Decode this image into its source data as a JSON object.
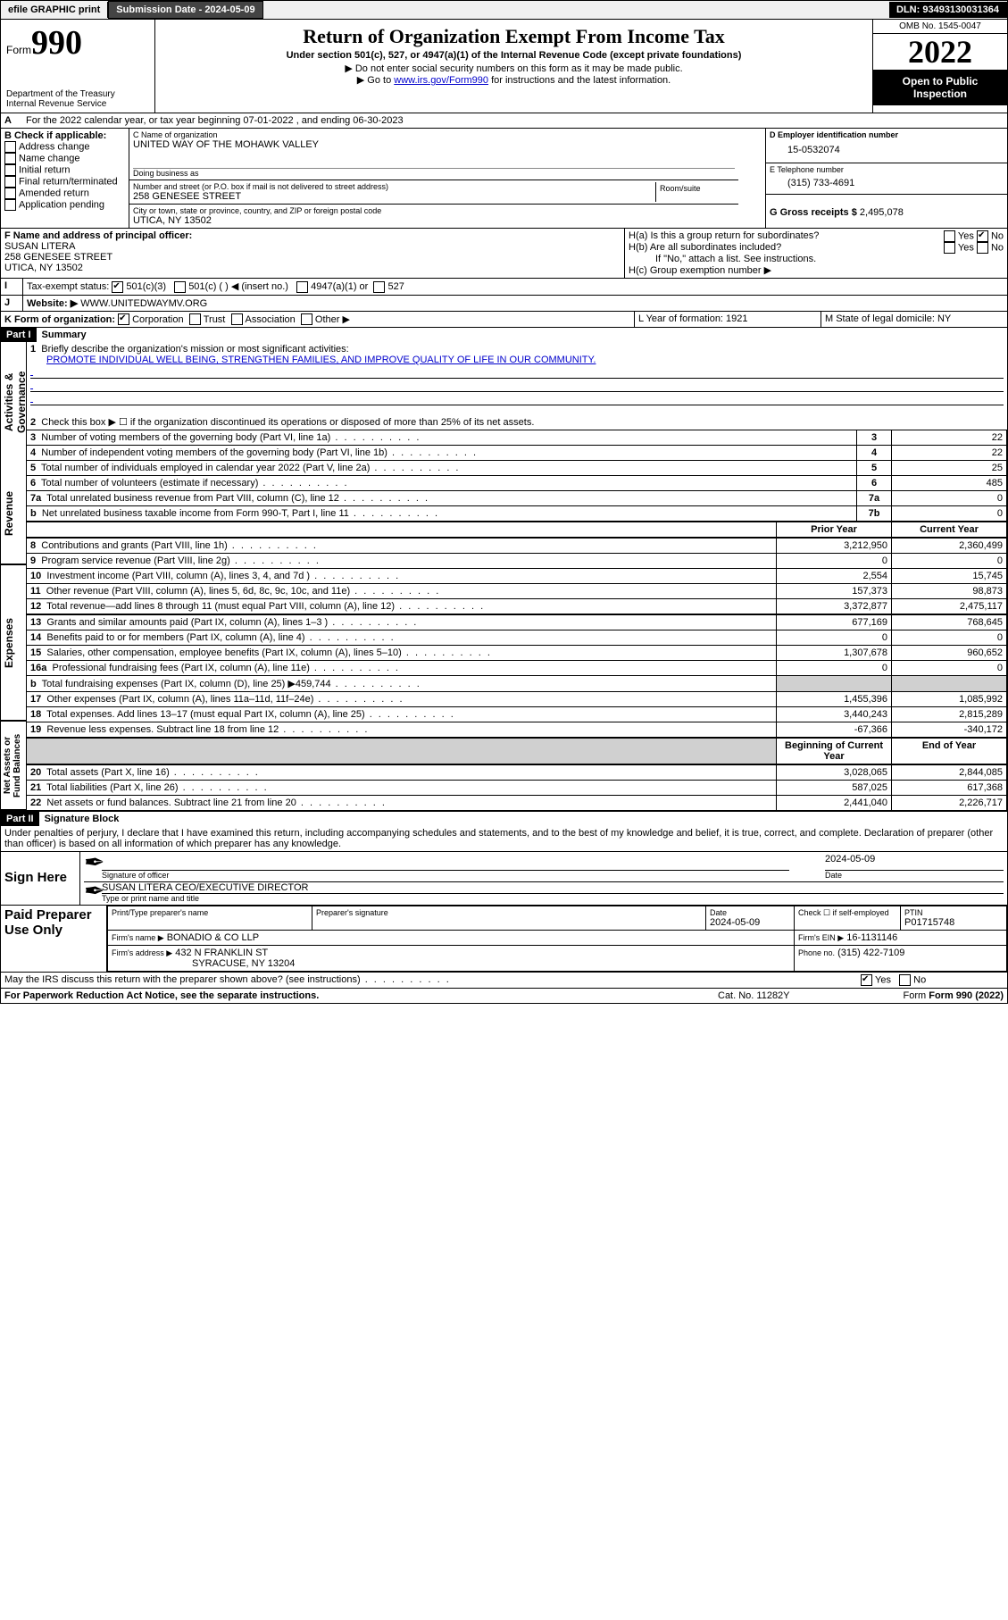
{
  "topbar": {
    "efile": "efile GRAPHIC print",
    "submission_label": "Submission Date - 2024-05-09",
    "dln": "DLN: 93493130031364"
  },
  "header": {
    "form_prefix": "Form",
    "form_number": "990",
    "dept": "Department of the Treasury",
    "irs": "Internal Revenue Service",
    "title": "Return of Organization Exempt From Income Tax",
    "sub1": "Under section 501(c), 527, or 4947(a)(1) of the Internal Revenue Code (except private foundations)",
    "sub2": "▶ Do not enter social security numbers on this form as it may be made public.",
    "sub3_pre": "▶ Go to ",
    "sub3_link": "www.irs.gov/Form990",
    "sub3_post": " for instructions and the latest information.",
    "omb": "OMB No. 1545-0047",
    "year": "2022",
    "open_public": "Open to Public Inspection"
  },
  "sectionA": {
    "period": "For the 2022 calendar year, or tax year beginning 07-01-2022    , and ending 06-30-2023",
    "B_label": "B Check if applicable:",
    "b_items": [
      "Address change",
      "Name change",
      "Initial return",
      "Final return/terminated",
      "Amended return",
      "Application pending"
    ],
    "C_label": "C Name of organization",
    "org_name": "UNITED WAY OF THE MOHAWK VALLEY",
    "dba_label": "Doing business as",
    "dba": "",
    "addr_label": "Number and street (or P.O. box if mail is not delivered to street address)",
    "room_label": "Room/suite",
    "addr": "258 GENESEE STREET",
    "city_label": "City or town, state or province, country, and ZIP or foreign postal code",
    "city": "UTICA, NY  13502",
    "D_label": "D Employer identification number",
    "ein": "15-0532074",
    "E_label": "E Telephone number",
    "phone": "(315) 733-4691",
    "G_label": "G Gross receipts $",
    "gross": "2,495,078",
    "F_label": "F  Name and address of principal officer:",
    "officer_name": "SUSAN LITERA",
    "officer_addr1": "258 GENESEE STREET",
    "officer_addr2": "UTICA, NY  13502",
    "Ha_label": "H(a)  Is this a group return for subordinates?",
    "Hb_label": "H(b)  Are all subordinates included?",
    "Hb_note": "If \"No,\" attach a list. See instructions.",
    "Hc_label": "H(c)  Group exemption number ▶",
    "I_label": "Tax-exempt status:",
    "I_501c3": "501(c)(3)",
    "I_501c": "501(c) (  ) ◀ (insert no.)",
    "I_4947": "4947(a)(1) or",
    "I_527": "527",
    "J_label": "Website: ▶",
    "website": "WWW.UNITEDWAYMV.ORG",
    "K_label": "K Form of organization:",
    "K_corp": "Corporation",
    "K_trust": "Trust",
    "K_assoc": "Association",
    "K_other": "Other ▶",
    "L_label": "L Year of formation: 1921",
    "M_label": "M State of legal domicile: NY"
  },
  "part1": {
    "header": "Part I",
    "title": "Summary",
    "side1": "Activities & Governance",
    "side2": "Revenue",
    "side3": "Expenses",
    "side4": "Net Assets or Fund Balances",
    "q1": "Briefly describe the organization's mission or most significant activities:",
    "q1_ans": "PROMOTE INDIVIDUAL WELL BEING, STRENGTHEN FAMILIES, AND IMPROVE QUALITY OF LIFE IN OUR COMMUNITY.",
    "q2": "Check this box ▶ ☐  if the organization discontinued its operations or disposed of more than 25% of its net assets.",
    "rows_gov": [
      {
        "n": "3",
        "t": "Number of voting members of the governing body (Part VI, line 1a)",
        "box": "3",
        "v": "22"
      },
      {
        "n": "4",
        "t": "Number of independent voting members of the governing body (Part VI, line 1b)",
        "box": "4",
        "v": "22"
      },
      {
        "n": "5",
        "t": "Total number of individuals employed in calendar year 2022 (Part V, line 2a)",
        "box": "5",
        "v": "25"
      },
      {
        "n": "6",
        "t": "Total number of volunteers (estimate if necessary)",
        "box": "6",
        "v": "485"
      },
      {
        "n": "7a",
        "t": "Total unrelated business revenue from Part VIII, column (C), line 12",
        "box": "7a",
        "v": "0"
      },
      {
        "n": "b",
        "t": "Net unrelated business taxable income from Form 990-T, Part I, line 11",
        "box": "7b",
        "v": "0"
      }
    ],
    "col_prior": "Prior Year",
    "col_current": "Current Year",
    "rows_rev": [
      {
        "n": "8",
        "t": "Contributions and grants (Part VIII, line 1h)",
        "p": "3,212,950",
        "c": "2,360,499"
      },
      {
        "n": "9",
        "t": "Program service revenue (Part VIII, line 2g)",
        "p": "0",
        "c": "0"
      },
      {
        "n": "10",
        "t": "Investment income (Part VIII, column (A), lines 3, 4, and 7d )",
        "p": "2,554",
        "c": "15,745"
      },
      {
        "n": "11",
        "t": "Other revenue (Part VIII, column (A), lines 5, 6d, 8c, 9c, 10c, and 11e)",
        "p": "157,373",
        "c": "98,873"
      },
      {
        "n": "12",
        "t": "Total revenue—add lines 8 through 11 (must equal Part VIII, column (A), line 12)",
        "p": "3,372,877",
        "c": "2,475,117"
      }
    ],
    "rows_exp": [
      {
        "n": "13",
        "t": "Grants and similar amounts paid (Part IX, column (A), lines 1–3 )",
        "p": "677,169",
        "c": "768,645"
      },
      {
        "n": "14",
        "t": "Benefits paid to or for members (Part IX, column (A), line 4)",
        "p": "0",
        "c": "0"
      },
      {
        "n": "15",
        "t": "Salaries, other compensation, employee benefits (Part IX, column (A), lines 5–10)",
        "p": "1,307,678",
        "c": "960,652"
      },
      {
        "n": "16a",
        "t": "Professional fundraising fees (Part IX, column (A), line 11e)",
        "p": "0",
        "c": "0"
      },
      {
        "n": "b",
        "t": "Total fundraising expenses (Part IX, column (D), line 25) ▶459,744",
        "p": "",
        "c": "",
        "shade": true
      },
      {
        "n": "17",
        "t": "Other expenses (Part IX, column (A), lines 11a–11d, 11f–24e)",
        "p": "1,455,396",
        "c": "1,085,992"
      },
      {
        "n": "18",
        "t": "Total expenses. Add lines 13–17 (must equal Part IX, column (A), line 25)",
        "p": "3,440,243",
        "c": "2,815,289"
      },
      {
        "n": "19",
        "t": "Revenue less expenses. Subtract line 18 from line 12",
        "p": "-67,366",
        "c": "-340,172"
      }
    ],
    "col_beg": "Beginning of Current Year",
    "col_end": "End of Year",
    "rows_net": [
      {
        "n": "20",
        "t": "Total assets (Part X, line 16)",
        "p": "3,028,065",
        "c": "2,844,085"
      },
      {
        "n": "21",
        "t": "Total liabilities (Part X, line 26)",
        "p": "587,025",
        "c": "617,368"
      },
      {
        "n": "22",
        "t": "Net assets or fund balances. Subtract line 21 from line 20",
        "p": "2,441,040",
        "c": "2,226,717"
      }
    ]
  },
  "part2": {
    "header": "Part II",
    "title": "Signature Block",
    "decl": "Under penalties of perjury, I declare that I have examined this return, including accompanying schedules and statements, and to the best of my knowledge and belief, it is true, correct, and complete. Declaration of preparer (other than officer) is based on all information of which preparer has any knowledge.",
    "sign_here": "Sign Here",
    "sig_officer": "Signature of officer",
    "sig_date": "2024-05-09",
    "date_label": "Date",
    "officer_typed": "SUSAN LITERA  CEO/EXECUTIVE DIRECTOR",
    "typed_label": "Type or print name and title",
    "paid": "Paid Preparer Use Only",
    "prep_name_label": "Print/Type preparer's name",
    "prep_sig_label": "Preparer's signature",
    "prep_date_label": "Date",
    "prep_date": "2024-05-09",
    "check_self": "Check ☐ if self-employed",
    "ptin_label": "PTIN",
    "ptin": "P01715748",
    "firm_name_label": "Firm's name    ▶",
    "firm_name": "BONADIO & CO LLP",
    "firm_ein_label": "Firm's EIN ▶",
    "firm_ein": "16-1131146",
    "firm_addr_label": "Firm's address ▶",
    "firm_addr1": "432 N FRANKLIN ST",
    "firm_addr2": "SYRACUSE, NY  13204",
    "firm_phone_label": "Phone no.",
    "firm_phone": "(315) 422-7109",
    "discuss": "May the IRS discuss this return with the preparer shown above? (see instructions)",
    "yes": "Yes",
    "no": "No"
  },
  "footer": {
    "paperwork": "For Paperwork Reduction Act Notice, see the separate instructions.",
    "cat": "Cat. No. 11282Y",
    "form": "Form 990 (2022)"
  }
}
